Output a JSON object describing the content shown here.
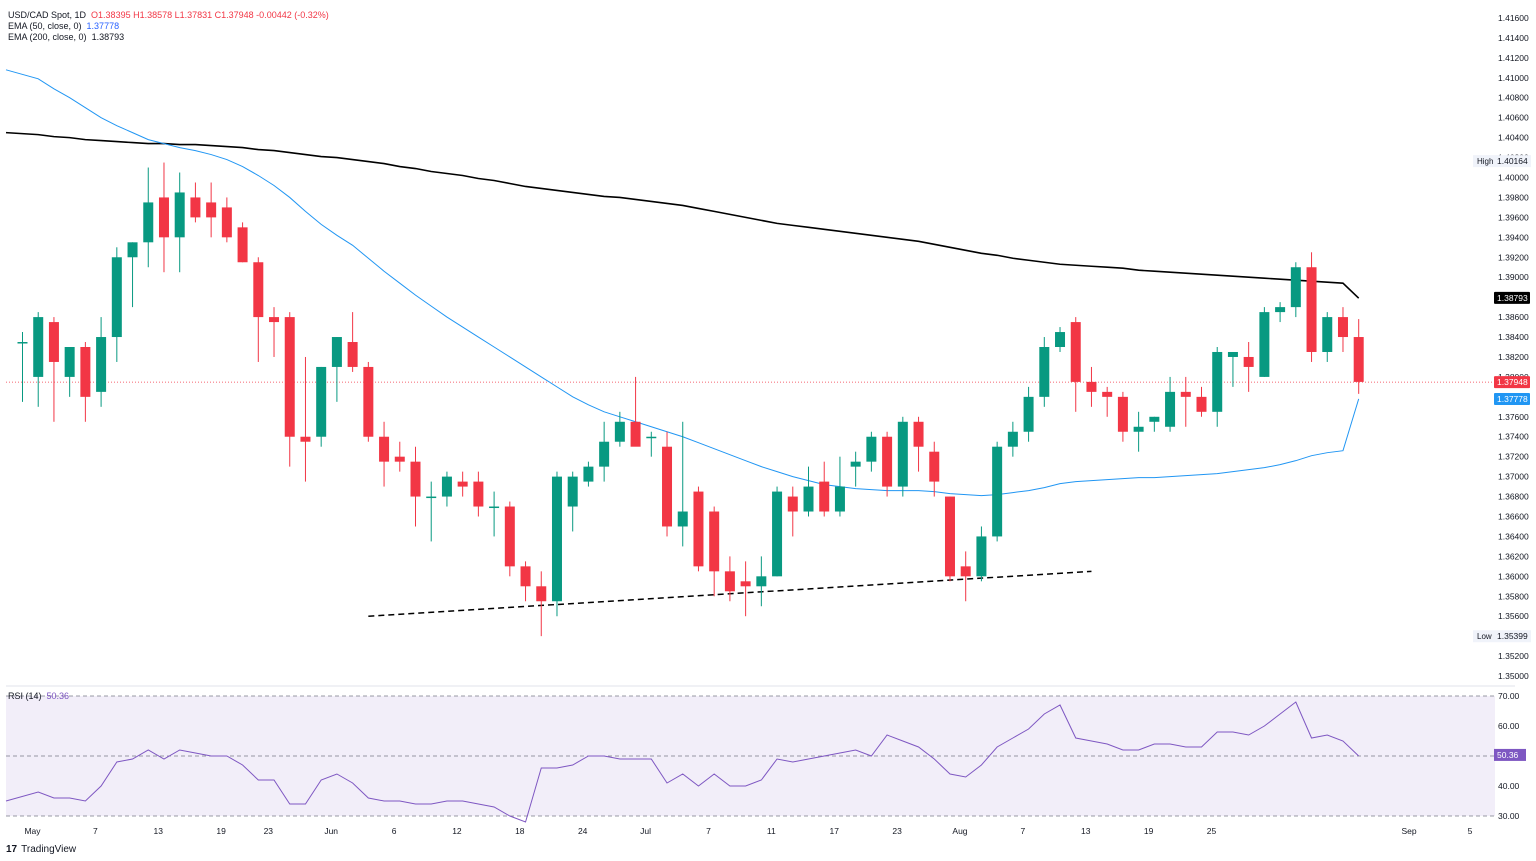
{
  "header": {
    "symbol": "USD/CAD Spot, 1D",
    "ohlc": "O1.38395 H1.38578 L1.37831 C1.37948 -0.00442 (-0.32%)",
    "ema50_label": "EMA (50, close, 0)",
    "ema50_value": "1.37778",
    "ema200_label": "EMA (200, close, 0)",
    "ema200_value": "1.38793"
  },
  "rsi_header": {
    "label": "RSI (14)",
    "value": "50.36"
  },
  "branding": {
    "logo_text": "TradingView"
  },
  "price_axis": {
    "ticks": [
      "1.41600",
      "1.41400",
      "1.41200",
      "1.41000",
      "1.40800",
      "1.40600",
      "1.40400",
      "1.40200",
      "1.40000",
      "1.39800",
      "1.39600",
      "1.39400",
      "1.39200",
      "1.39000",
      "1.38800",
      "1.38600",
      "1.38400",
      "1.38200",
      "1.38000",
      "1.37800",
      "1.37600",
      "1.37400",
      "1.37200",
      "1.37000",
      "1.36800",
      "1.36600",
      "1.36400",
      "1.36200",
      "1.36000",
      "1.35800",
      "1.35600",
      "1.35400",
      "1.35200",
      "1.35000"
    ],
    "high_label": "High",
    "high_value": "1.40164",
    "low_label": "Low",
    "low_value": "1.35399",
    "tag_ema200": "1.38793",
    "tag_close": "1.37948",
    "tag_ema50": "1.37778"
  },
  "rsi_axis": {
    "ticks": [
      "70.00",
      "60.00",
      "40.00",
      "30.00"
    ],
    "tag": "50.36"
  },
  "colors": {
    "up": "#089981",
    "down": "#f23645",
    "ema50": "#2196f3",
    "ema200": "#000000",
    "rsi": "#7e57c2"
  },
  "chart_data": [
    {
      "type": "candlestick",
      "title": "USD/CAD Spot, 1D",
      "x_labels": [
        "May",
        "7",
        "13",
        "19",
        "23",
        "Jun",
        "6",
        "12",
        "18",
        "24",
        "Jul",
        "7",
        "11",
        "17",
        "23",
        "Aug",
        "7",
        "13",
        "19",
        "25",
        "Sep",
        "5"
      ],
      "ylim": [
        1.349,
        1.417
      ],
      "candles": [
        [
          1.3835,
          1.3845,
          1.3775,
          1.3835
        ],
        [
          1.38,
          1.3865,
          1.377,
          1.386
        ],
        [
          1.3855,
          1.386,
          1.3755,
          1.3815
        ],
        [
          1.38,
          1.383,
          1.378,
          1.383
        ],
        [
          1.383,
          1.3835,
          1.3755,
          1.378
        ],
        [
          1.3785,
          1.386,
          1.377,
          1.384
        ],
        [
          1.384,
          1.393,
          1.3815,
          1.392
        ],
        [
          1.392,
          1.3935,
          1.387,
          1.3935
        ],
        [
          1.3935,
          1.401,
          1.391,
          1.3975
        ],
        [
          1.398,
          1.4015,
          1.3905,
          1.394
        ],
        [
          1.394,
          1.4005,
          1.3905,
          1.3985
        ],
        [
          1.398,
          1.3995,
          1.3955,
          1.396
        ],
        [
          1.3975,
          1.3995,
          1.394,
          1.396
        ],
        [
          1.397,
          1.398,
          1.3935,
          1.394
        ],
        [
          1.395,
          1.3955,
          1.3915,
          1.3915
        ],
        [
          1.3915,
          1.392,
          1.3815,
          1.386
        ],
        [
          1.386,
          1.387,
          1.382,
          1.3855
        ],
        [
          1.386,
          1.3865,
          1.371,
          1.374
        ],
        [
          1.374,
          1.382,
          1.3695,
          1.3735
        ],
        [
          1.374,
          1.381,
          1.373,
          1.381
        ],
        [
          1.381,
          1.384,
          1.3775,
          1.384
        ],
        [
          1.3835,
          1.3865,
          1.3805,
          1.381
        ],
        [
          1.381,
          1.3815,
          1.3735,
          1.374
        ],
        [
          1.374,
          1.3755,
          1.369,
          1.3715
        ],
        [
          1.372,
          1.3735,
          1.3705,
          1.3715
        ],
        [
          1.3715,
          1.373,
          1.365,
          1.368
        ],
        [
          1.368,
          1.3695,
          1.3635,
          1.368
        ],
        [
          1.368,
          1.3705,
          1.367,
          1.37
        ],
        [
          1.3695,
          1.3705,
          1.368,
          1.369
        ],
        [
          1.3695,
          1.3705,
          1.366,
          1.367
        ],
        [
          1.367,
          1.3685,
          1.364,
          1.367
        ],
        [
          1.367,
          1.3675,
          1.36,
          1.361
        ],
        [
          1.361,
          1.3615,
          1.3575,
          1.359
        ],
        [
          1.359,
          1.3605,
          1.354,
          1.3575
        ],
        [
          1.3575,
          1.3705,
          1.356,
          1.37
        ],
        [
          1.367,
          1.3705,
          1.3645,
          1.37
        ],
        [
          1.3695,
          1.3715,
          1.369,
          1.371
        ],
        [
          1.371,
          1.3755,
          1.3695,
          1.3735
        ],
        [
          1.3735,
          1.3765,
          1.373,
          1.3755
        ],
        [
          1.3755,
          1.38,
          1.3735,
          1.373
        ],
        [
          1.374,
          1.3745,
          1.372,
          1.374
        ],
        [
          1.373,
          1.3745,
          1.364,
          1.365
        ],
        [
          1.365,
          1.3755,
          1.363,
          1.3665
        ],
        [
          1.3685,
          1.369,
          1.3605,
          1.361
        ],
        [
          1.3665,
          1.367,
          1.358,
          1.3605
        ],
        [
          1.3605,
          1.362,
          1.3575,
          1.3585
        ],
        [
          1.3595,
          1.3615,
          1.356,
          1.359
        ],
        [
          1.359,
          1.362,
          1.357,
          1.36
        ],
        [
          1.36,
          1.369,
          1.36,
          1.3685
        ],
        [
          1.368,
          1.369,
          1.364,
          1.3665
        ],
        [
          1.3665,
          1.371,
          1.366,
          1.369
        ],
        [
          1.3695,
          1.3715,
          1.366,
          1.3665
        ],
        [
          1.3665,
          1.372,
          1.366,
          1.369
        ],
        [
          1.371,
          1.3725,
          1.369,
          1.3715
        ],
        [
          1.3715,
          1.3745,
          1.3705,
          1.374
        ],
        [
          1.374,
          1.3745,
          1.368,
          1.369
        ],
        [
          1.369,
          1.376,
          1.368,
          1.3755
        ],
        [
          1.3755,
          1.376,
          1.3705,
          1.373
        ],
        [
          1.3725,
          1.3735,
          1.368,
          1.3695
        ],
        [
          1.368,
          1.368,
          1.3595,
          1.36
        ],
        [
          1.361,
          1.3625,
          1.3575,
          1.36
        ],
        [
          1.36,
          1.365,
          1.3595,
          1.364
        ],
        [
          1.364,
          1.3735,
          1.3635,
          1.373
        ],
        [
          1.373,
          1.3755,
          1.372,
          1.3745
        ],
        [
          1.3745,
          1.379,
          1.3735,
          1.378
        ],
        [
          1.378,
          1.384,
          1.377,
          1.383
        ],
        [
          1.383,
          1.385,
          1.3825,
          1.3845
        ],
        [
          1.3855,
          1.386,
          1.3765,
          1.3795
        ],
        [
          1.3795,
          1.381,
          1.377,
          1.3785
        ],
        [
          1.3785,
          1.379,
          1.376,
          1.378
        ],
        [
          1.378,
          1.3785,
          1.3735,
          1.3745
        ],
        [
          1.3745,
          1.3765,
          1.3725,
          1.375
        ],
        [
          1.3755,
          1.376,
          1.3745,
          1.376
        ],
        [
          1.375,
          1.38,
          1.3745,
          1.3785
        ],
        [
          1.3785,
          1.38,
          1.375,
          1.378
        ],
        [
          1.378,
          1.379,
          1.376,
          1.3765
        ],
        [
          1.3765,
          1.383,
          1.375,
          1.3825
        ],
        [
          1.382,
          1.3825,
          1.379,
          1.3825
        ],
        [
          1.382,
          1.3835,
          1.3785,
          1.381
        ],
        [
          1.38,
          1.387,
          1.38,
          1.3865
        ],
        [
          1.3865,
          1.3875,
          1.3855,
          1.387
        ],
        [
          1.387,
          1.3915,
          1.386,
          1.391
        ],
        [
          1.391,
          1.3925,
          1.3815,
          1.3825
        ],
        [
          1.3825,
          1.3865,
          1.3815,
          1.386
        ],
        [
          1.386,
          1.387,
          1.3825,
          1.384
        ],
        [
          1.384,
          1.3858,
          1.3783,
          1.3795
        ]
      ],
      "ema50": [
        1.4108,
        1.4099,
        1.4089,
        1.408,
        1.407,
        1.406,
        1.4052,
        1.4045,
        1.4038,
        1.4034,
        1.403,
        1.4027,
        1.4023,
        1.4018,
        1.4011,
        1.4002,
        1.3992,
        1.398,
        1.3966,
        1.3953,
        1.3942,
        1.3932,
        1.3919,
        1.3906,
        1.3894,
        1.3882,
        1.3871,
        1.386,
        1.385,
        1.384,
        1.383,
        1.382,
        1.381,
        1.38,
        1.379,
        1.378,
        1.3772,
        1.3765,
        1.376,
        1.3755,
        1.375,
        1.3745,
        1.374,
        1.3734,
        1.3728,
        1.3722,
        1.3716,
        1.371,
        1.3705,
        1.37,
        1.3696,
        1.3692,
        1.369,
        1.3688,
        1.3687,
        1.3686,
        1.3686,
        1.3686,
        1.3685,
        1.3683,
        1.3682,
        1.3681,
        1.3682,
        1.3684,
        1.3686,
        1.3689,
        1.3693,
        1.3695,
        1.3696,
        1.3697,
        1.3698,
        1.3699,
        1.3699,
        1.37,
        1.3701,
        1.3702,
        1.3703,
        1.3705,
        1.3707,
        1.3709,
        1.3712,
        1.3716,
        1.3721,
        1.3724,
        1.3726,
        1.3778
      ],
      "ema200": [
        1.4045,
        1.4043,
        1.4041,
        1.404,
        1.4038,
        1.4037,
        1.4036,
        1.4035,
        1.4034,
        1.4034,
        1.4033,
        1.4033,
        1.4032,
        1.4031,
        1.403,
        1.4028,
        1.4027,
        1.4025,
        1.4023,
        1.4021,
        1.402,
        1.4018,
        1.4016,
        1.4014,
        1.4011,
        1.4009,
        1.4006,
        1.4004,
        1.4002,
        1.3999,
        1.3997,
        1.3994,
        1.3991,
        1.3989,
        1.3987,
        1.3985,
        1.3983,
        1.3981,
        1.398,
        1.3978,
        1.3976,
        1.3974,
        1.3972,
        1.3969,
        1.3966,
        1.3963,
        1.396,
        1.3957,
        1.3954,
        1.3952,
        1.395,
        1.3948,
        1.3946,
        1.3944,
        1.3942,
        1.394,
        1.3938,
        1.3936,
        1.3933,
        1.393,
        1.3927,
        1.3924,
        1.3922,
        1.3919,
        1.3917,
        1.3915,
        1.3913,
        1.3912,
        1.3911,
        1.391,
        1.3909,
        1.3907,
        1.3906,
        1.3905,
        1.3904,
        1.3903,
        1.3902,
        1.3901,
        1.39,
        1.3899,
        1.3898,
        1.3897,
        1.3896,
        1.3895,
        1.3894,
        1.3879
      ],
      "trendline": {
        "from": [
          0,
          1.356
        ],
        "to": [
          1,
          1.3605
        ]
      },
      "last_close": 1.37948
    },
    {
      "type": "line",
      "title": "RSI (14)",
      "ylim": [
        28,
        72
      ],
      "bands": [
        70,
        50,
        30
      ],
      "values": [
        35,
        38,
        36,
        36,
        35,
        40,
        48,
        49,
        52,
        49,
        52,
        51,
        50,
        50,
        47,
        42,
        42,
        34,
        34,
        42,
        44,
        41,
        36,
        35,
        35,
        34,
        34,
        35,
        35,
        34,
        33,
        30,
        28,
        46,
        46,
        47,
        50,
        50,
        49,
        49,
        49,
        41,
        44,
        40,
        44,
        40,
        40,
        42,
        49,
        48,
        49,
        50,
        51,
        52,
        50,
        57,
        55,
        53,
        49,
        44,
        43,
        47,
        53,
        56,
        59,
        64,
        67,
        56,
        55,
        54,
        52,
        52,
        54,
        54,
        53,
        53,
        58,
        58,
        57,
        60,
        64,
        68,
        56,
        57,
        55,
        50
      ]
    }
  ]
}
